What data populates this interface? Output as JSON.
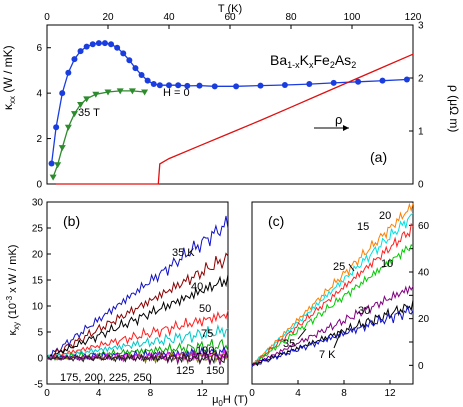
{
  "chart_data": [
    {
      "id": "a",
      "type": "line",
      "panel_label": "(a)",
      "title": "Ba1-xKxFe2As2",
      "x_top": {
        "label": "T (K)",
        "lim": [
          0,
          120
        ],
        "ticks": [
          0,
          20,
          40,
          60,
          80,
          100,
          120
        ]
      },
      "y_left": {
        "label": "κxx (W / mK)",
        "lim": [
          0,
          7
        ],
        "ticks": [
          0,
          2,
          4,
          6
        ]
      },
      "y_right": {
        "label": "ρ (μΩ m)",
        "lim": [
          0,
          3
        ],
        "ticks": [
          0,
          1,
          2,
          3
        ]
      },
      "annotations": [
        "H = 0",
        "35 T",
        "ρ"
      ],
      "series": [
        {
          "name": "H = 0",
          "axis": "left",
          "color": "#1a3de0",
          "marker": "circle",
          "x": [
            1.5,
            3,
            5,
            7,
            9,
            11,
            13,
            15,
            17,
            19,
            21,
            23,
            25,
            27,
            29,
            31,
            33,
            35,
            37,
            40,
            43,
            46,
            50,
            55,
            62,
            70,
            78,
            86,
            94,
            102,
            110,
            118
          ],
          "y": [
            0.9,
            2.5,
            4.0,
            4.9,
            5.5,
            5.85,
            6.05,
            6.15,
            6.2,
            6.2,
            6.15,
            6.0,
            5.75,
            5.45,
            5.1,
            4.8,
            4.55,
            4.4,
            4.35,
            4.35,
            4.35,
            4.32,
            4.33,
            4.3,
            4.3,
            4.33,
            4.36,
            4.4,
            4.45,
            4.5,
            4.55,
            4.6
          ]
        },
        {
          "name": "35 T",
          "axis": "left",
          "color": "#2e8b2e",
          "marker": "triangle-down",
          "x": [
            2,
            3.5,
            5,
            7,
            9,
            11,
            13,
            16,
            20,
            24,
            28,
            32
          ],
          "y": [
            0.3,
            0.85,
            1.6,
            2.5,
            3.1,
            3.5,
            3.75,
            3.95,
            4.05,
            4.1,
            4.1,
            4.05
          ]
        },
        {
          "name": "ρ",
          "axis": "right",
          "color": "#e01010",
          "marker": "none",
          "x": [
            3,
            20,
            36.5,
            37,
            40,
            50,
            60,
            70,
            80,
            90,
            100,
            110,
            120
          ],
          "y": [
            0,
            0,
            0,
            0.38,
            0.48,
            0.72,
            0.96,
            1.2,
            1.45,
            1.7,
            1.95,
            2.2,
            2.45
          ]
        }
      ]
    },
    {
      "id": "b",
      "type": "line",
      "panel_label": "(b)",
      "xlabel": "μ0H (T)",
      "ylabel": "κxy (10-3 x W / mK)",
      "xlim": [
        0,
        14
      ],
      "ylim": [
        -5,
        30
      ],
      "xticks": [
        0,
        4,
        8,
        12
      ],
      "yticks": [
        -5,
        0,
        5,
        10,
        15,
        20,
        25,
        30
      ],
      "annotations": [
        "35 K",
        "40",
        "50",
        "75",
        "100",
        "125",
        "150",
        "175, 200, 225, 250"
      ],
      "series": [
        {
          "name": "35 K",
          "color": "#1010c8",
          "slope": 1.85
        },
        {
          "name": "40",
          "color": "#8b0000",
          "slope": 1.38
        },
        {
          "name": "50",
          "color": "#000000",
          "slope": 1.08
        },
        {
          "name": "75",
          "color": "#ff2020",
          "slope": 0.6
        },
        {
          "name": "100",
          "color": "#00c8c8",
          "slope": 0.38
        },
        {
          "name": "125",
          "color": "#00aa00",
          "slope": 0.18
        },
        {
          "name": "150",
          "color": "#1010c8",
          "slope": 0.08
        },
        {
          "name": "175",
          "color": "#ff00ff",
          "slope": 0.04
        },
        {
          "name": "200",
          "color": "#808000",
          "slope": 0.02
        },
        {
          "name": "225",
          "color": "#800080",
          "slope": 0.01
        },
        {
          "name": "250",
          "color": "#202020",
          "slope": 0.0
        }
      ]
    },
    {
      "id": "c",
      "type": "line",
      "panel_label": "(c)",
      "xlabel": "μ0H (T)",
      "xlim": [
        0,
        14
      ],
      "ylim": [
        -8,
        70
      ],
      "xticks": [
        0,
        4,
        8,
        12
      ],
      "yticks_right": [
        0,
        10,
        20,
        30,
        40,
        50,
        60
      ],
      "yticks_right_labels": [
        "0",
        "",
        "20",
        "",
        "40",
        "",
        "60"
      ],
      "annotations": [
        "20",
        "15",
        "25",
        "10",
        "30",
        "35",
        "7 K"
      ],
      "series": [
        {
          "name": "20",
          "color": "#ff8000",
          "slope": 4.9
        },
        {
          "name": "15",
          "color": "#00e0e0",
          "slope": 4.6
        },
        {
          "name": "25",
          "color": "#ff2020",
          "slope": 4.2
        },
        {
          "name": "10",
          "color": "#00cc00",
          "slope": 3.7
        },
        {
          "name": "30",
          "color": "#800080",
          "slope": 2.4
        },
        {
          "name": "35",
          "color": "#000000",
          "slope": 1.85
        },
        {
          "name": "7 K",
          "color": "#1010c8",
          "slope": 1.7
        }
      ]
    }
  ]
}
